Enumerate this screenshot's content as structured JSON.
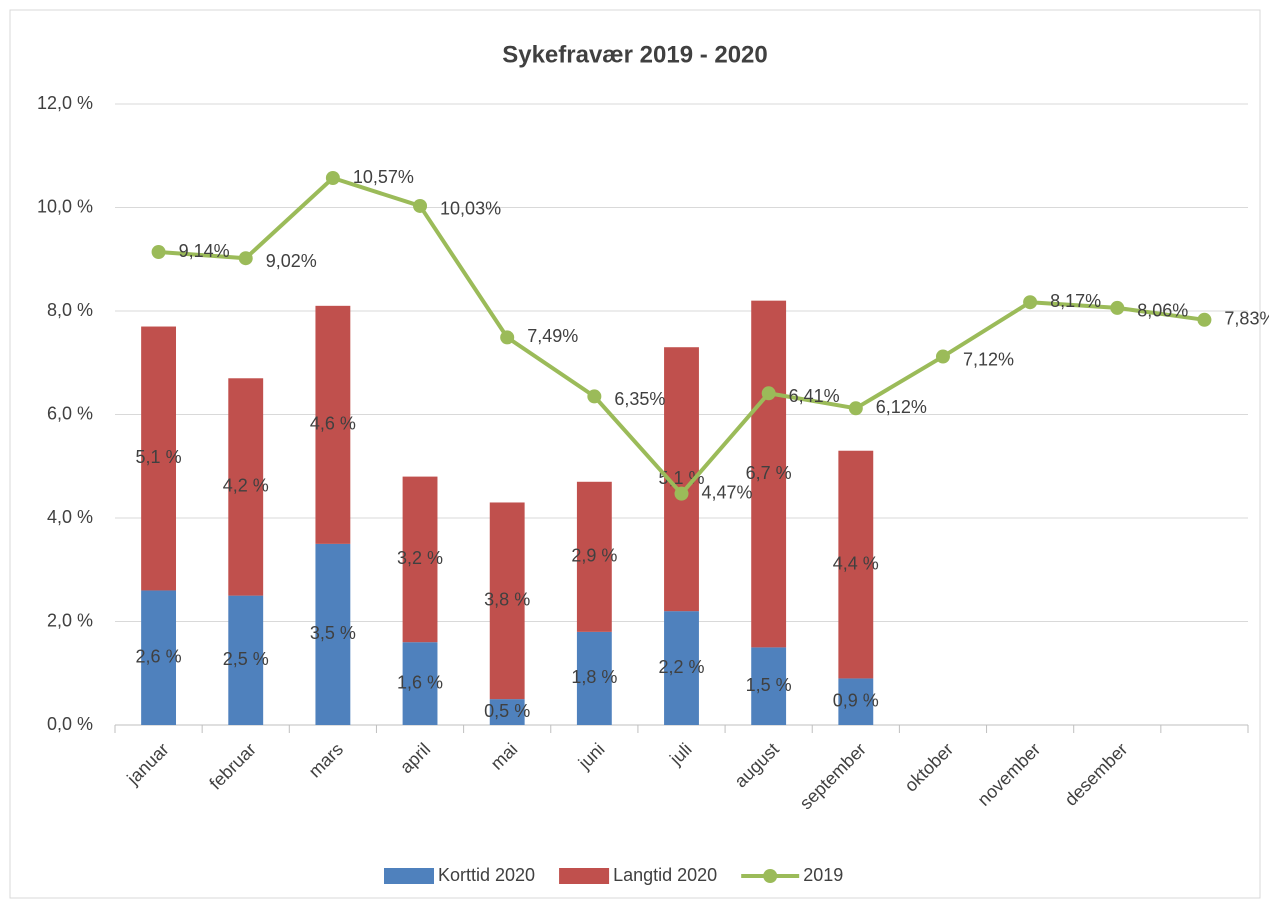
{
  "chart_data": {
    "type": "bar-line",
    "title": "Sykefravær 2019 - 2020",
    "categories": [
      "januar",
      "februar",
      "mars",
      "april",
      "mai",
      "juni",
      "juli",
      "august",
      "september",
      "oktober",
      "november",
      "desember",
      null
    ],
    "series": [
      {
        "name": "Korttid 2020",
        "type": "bar",
        "color": "#4f81bd",
        "values": [
          2.6,
          2.5,
          3.5,
          1.6,
          0.5,
          1.8,
          2.2,
          1.5,
          0.9,
          null,
          null,
          null,
          null
        ],
        "value_labels": [
          "2,6 %",
          "2,5 %",
          "3,5 %",
          "1,6 %",
          "0,5 %",
          "1,8 %",
          "2,2 %",
          "1,5 %",
          "0,9 %",
          null,
          null,
          null,
          null
        ]
      },
      {
        "name": "Langtid 2020",
        "type": "bar",
        "color": "#c0504d",
        "values": [
          5.1,
          4.2,
          4.6,
          3.2,
          3.8,
          2.9,
          5.1,
          6.7,
          4.4,
          null,
          null,
          null,
          null
        ],
        "value_labels": [
          "5,1 %",
          "4,2 %",
          "4,6 %",
          "3,2 %",
          "3,8 %",
          "2,9 %",
          "5,1 %",
          "6,7 %",
          "4,4 %",
          null,
          null,
          null,
          null
        ]
      },
      {
        "name": "2019",
        "type": "line",
        "color": "#9bbb59",
        "values": [
          9.14,
          9.02,
          10.57,
          10.03,
          7.49,
          6.35,
          4.47,
          6.41,
          6.12,
          7.12,
          8.17,
          8.06,
          7.83
        ],
        "value_labels": [
          "9,14%",
          "9,02%",
          "10,57%",
          "10,03%",
          "7,49%",
          "6,35%",
          "4,47%",
          "6,41%",
          "6,12%",
          "7,12%",
          "8,17%",
          "8,06%",
          "7,83%"
        ]
      }
    ],
    "ylim": [
      0,
      12
    ],
    "yticks": [
      {
        "value": 0,
        "label": "0,0 %"
      },
      {
        "value": 2,
        "label": "2,0 %"
      },
      {
        "value": 4,
        "label": "4,0 %"
      },
      {
        "value": 6,
        "label": "6,0 %"
      },
      {
        "value": 8,
        "label": "8,0 %"
      },
      {
        "value": 10,
        "label": "10,0 %"
      },
      {
        "value": 12,
        "label": "12,0 %"
      }
    ],
    "grid": true,
    "legend": "bottom"
  }
}
